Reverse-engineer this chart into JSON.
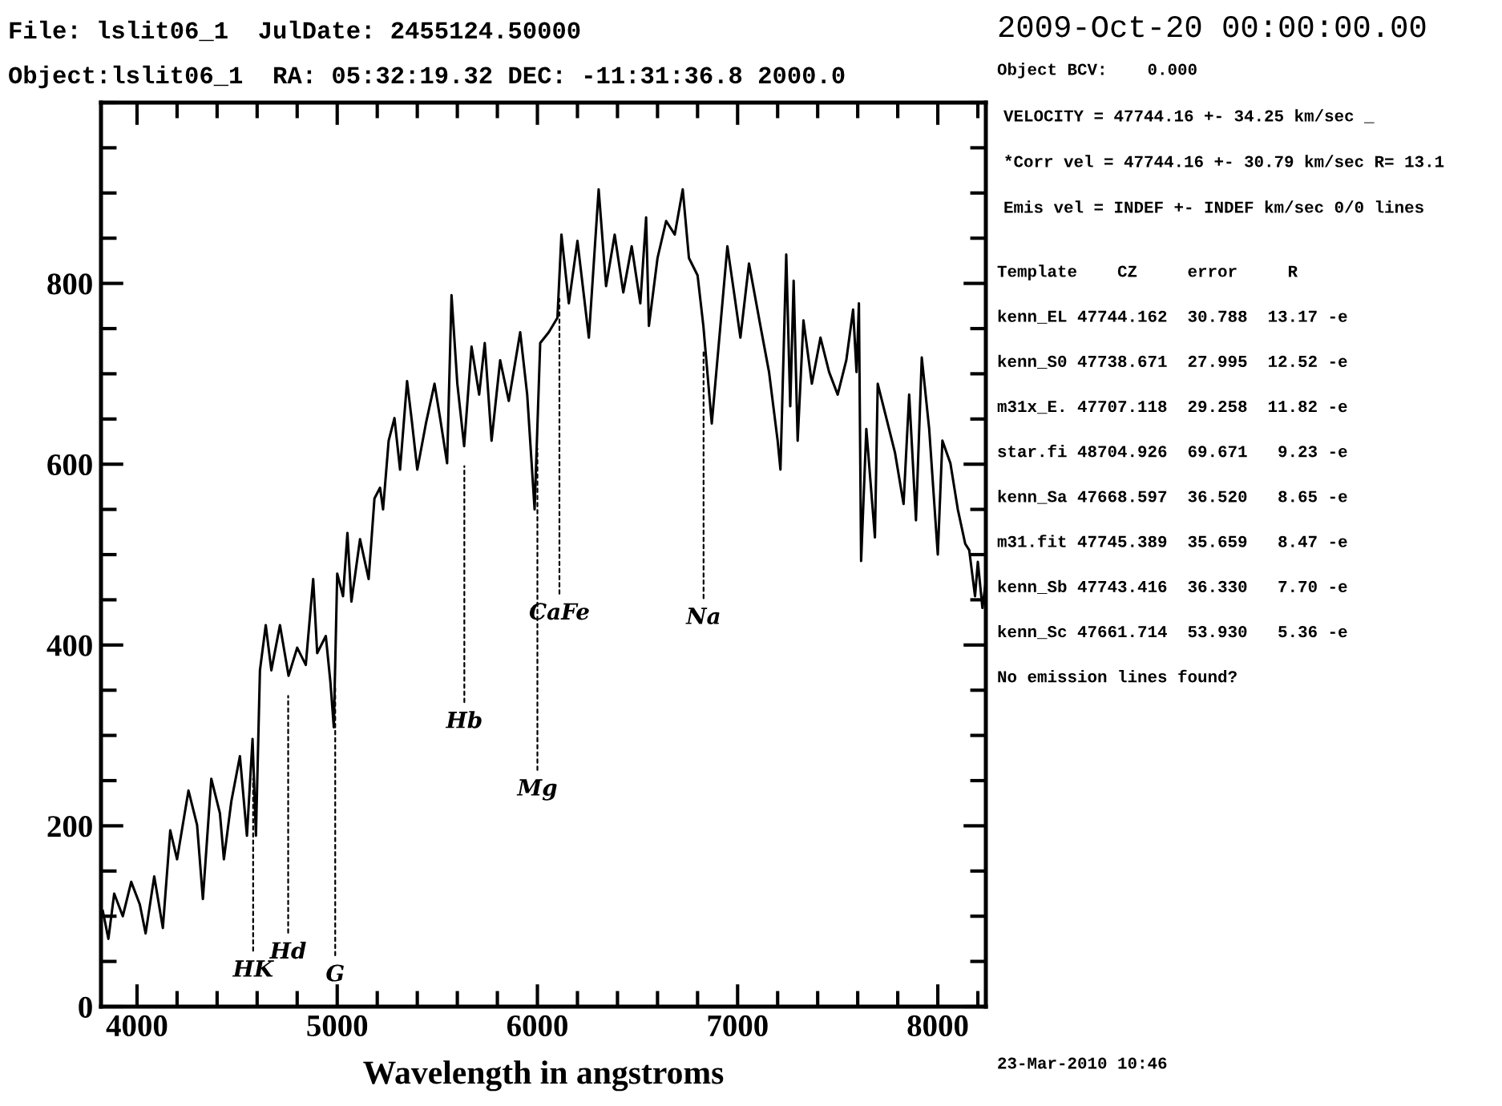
{
  "chart_data": {
    "type": "line",
    "title": "File: lslit06_1  JulDate: 2455124.50000",
    "subtitle": "Object:lslit06_1  RA: 05:32:19.32 DEC: -11:31:36.8 2000.0",
    "xlabel": "Wavelength in angstroms",
    "x": [
      3829,
      3857,
      3886,
      3929,
      3971,
      4014,
      4043,
      4086,
      4129,
      4166,
      4200,
      4257,
      4300,
      4329,
      4371,
      4414,
      4434,
      4471,
      4514,
      4549,
      4577,
      4594,
      4614,
      4643,
      4671,
      4714,
      4757,
      4800,
      4843,
      4880,
      4900,
      4943,
      4966,
      4983,
      5000,
      5029,
      5051,
      5071,
      5114,
      5157,
      5186,
      5214,
      5229,
      5257,
      5286,
      5314,
      5349,
      5371,
      5400,
      5443,
      5486,
      5514,
      5549,
      5571,
      5600,
      5634,
      5671,
      5709,
      5737,
      5771,
      5814,
      5857,
      5914,
      5949,
      5986,
      6014,
      6057,
      6100,
      6120,
      6157,
      6200,
      6257,
      6306,
      6343,
      6386,
      6429,
      6471,
      6514,
      6543,
      6557,
      6600,
      6643,
      6686,
      6726,
      6757,
      6800,
      6829,
      6871,
      6914,
      6949,
      6986,
      7014,
      7057,
      7114,
      7157,
      7200,
      7214,
      7243,
      7263,
      7280,
      7300,
      7329,
      7371,
      7414,
      7457,
      7500,
      7543,
      7577,
      7594,
      7606,
      7617,
      7643,
      7686,
      7700,
      7743,
      7786,
      7829,
      7857,
      7891,
      7920,
      7957,
      8000,
      8023,
      8063,
      8100,
      8137,
      8157,
      8186,
      8200,
      8223,
      8238
    ],
    "series": [
      {
        "color": "#000000",
        "values": [
          106,
          75,
          125,
          100,
          138,
          113,
          81,
          144,
          87,
          195,
          163,
          239,
          201,
          119,
          252,
          214,
          163,
          227,
          277,
          189,
          296,
          189,
          372,
          422,
          372,
          422,
          366,
          397,
          378,
          473,
          391,
          410,
          359,
          309,
          479,
          454,
          524,
          448,
          517,
          473,
          562,
          574,
          550,
          626,
          651,
          594,
          692,
          651,
          594,
          645,
          689,
          651,
          601,
          787,
          689,
          620,
          730,
          677,
          734,
          626,
          715,
          670,
          746,
          677,
          550,
          734,
          746,
          762,
          854,
          778,
          847,
          740,
          904,
          797,
          854,
          790,
          841,
          778,
          873,
          753,
          828,
          869,
          854,
          904,
          828,
          809,
          753,
          645,
          753,
          841,
          784,
          740,
          822,
          753,
          702,
          626,
          594,
          832,
          664,
          803,
          626,
          759,
          689,
          740,
          702,
          677,
          715,
          771,
          702,
          778,
          493,
          639,
          519,
          689,
          651,
          613,
          556,
          677,
          538,
          718,
          639,
          500,
          626,
          601,
          550,
          512,
          505,
          454,
          492,
          441,
          467
        ]
      }
    ],
    "xlim": [
      3820,
      8240
    ],
    "ylim": [
      0,
      1000
    ],
    "xticks": [
      4000,
      {
        "value": 4200,
        "label": null
      },
      {
        "value": 4400,
        "label": null
      },
      {
        "value": 4600,
        "label": null
      },
      {
        "value": 4800,
        "label": null
      },
      5000,
      {
        "value": 5200,
        "label": null
      },
      {
        "value": 5400,
        "label": null
      },
      {
        "value": 5600,
        "label": null
      },
      {
        "value": 5800,
        "label": null
      },
      6000,
      {
        "value": 6200,
        "label": null
      },
      {
        "value": 6400,
        "label": null
      },
      {
        "value": 6600,
        "label": null
      },
      {
        "value": 6800,
        "label": null
      },
      7000,
      {
        "value": 7200,
        "label": null
      },
      {
        "value": 7400,
        "label": null
      },
      {
        "value": 7600,
        "label": null
      },
      {
        "value": 7800,
        "label": null
      },
      8000,
      {
        "value": 8200,
        "label": null
      }
    ],
    "yticks": [
      0,
      {
        "value": 50,
        "label": null
      },
      {
        "value": 100,
        "label": null
      },
      {
        "value": 150,
        "label": null
      },
      200,
      {
        "value": 250,
        "label": null
      },
      {
        "value": 300,
        "label": null
      },
      {
        "value": 350,
        "label": null
      },
      400,
      {
        "value": 450,
        "label": null
      },
      {
        "value": 500,
        "label": null
      },
      {
        "value": 550,
        "label": null
      },
      600,
      {
        "value": 650,
        "label": null
      },
      {
        "value": 700,
        "label": null
      },
      {
        "value": 750,
        "label": null
      },
      800,
      {
        "value": 850,
        "label": null
      },
      {
        "value": 900,
        "label": null
      },
      {
        "value": 950,
        "label": null
      },
      {
        "value": 1000,
        "label": null
      }
    ],
    "grid": false,
    "marker": "none",
    "line_style": "solid",
    "annotations": [
      "2009-Oct-20 00:00:00.00",
      "Object BCV:    0.000",
      "VELOCITY = 47744.16 +- 34.25 km/sec _",
      "*Corr vel = 47744.16 +- 30.79 km/sec R= 13.1",
      "Emis vel = INDEF +- INDEF km/sec 0/0 lines",
      "Template    CZ     error     R",
      "kenn_EL 47744.162  30.788  13.17 -e",
      "kenn_S0 47738.671  27.995  12.52 -e",
      "m31x_E. 47707.118  29.258  11.82 -e",
      "star.fi 48704.926  69.671   9.23 -e",
      "kenn_Sa 47668.597  36.520   8.65 -e",
      "m31.fit 47745.389  35.659   8.47 -e",
      "kenn_Sb 47743.416  36.330   7.70 -e",
      "kenn_Sc 47661.714  53.930   5.36 -e",
      "No emission lines found?",
      "23-Mar-2010 10:46",
      {
        "text": "HK",
        "x": 4580
      },
      {
        "text": "Hd",
        "x": 4755
      },
      {
        "text": "G",
        "x": 4990
      },
      {
        "text": "Hb",
        "x": 5635
      },
      {
        "text": "Mg",
        "x": 6000
      },
      {
        "text": "CaFe",
        "x": 6110
      },
      {
        "text": "Na",
        "x": 6830
      }
    ]
  }
}
